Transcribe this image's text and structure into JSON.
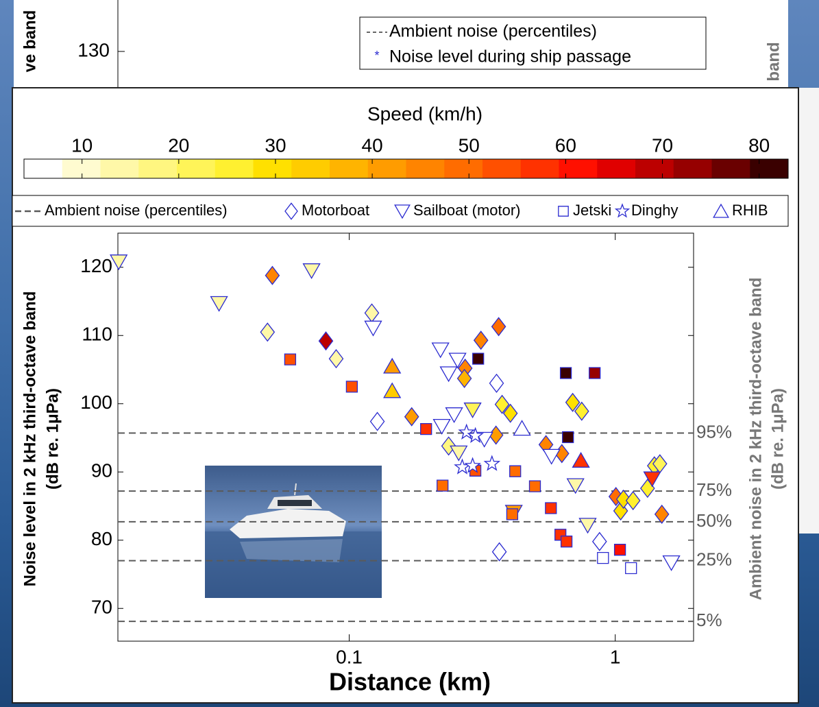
{
  "background_chart": {
    "yticks": [
      130
    ],
    "ylabel": "ve band",
    "y2label": "band",
    "legend": [
      "Ambient noise (percentiles)",
      "Noise level during ship passage"
    ]
  },
  "chart_data": {
    "type": "scatter",
    "xlabel": "Distance (km)",
    "ylabel": [
      "Noise level in 2 kHz third-octave band",
      "(dB re. 1μPa)"
    ],
    "y2label": [
      "Ambient noise in 2 kHz third-octave band",
      "(dB re. 1μPa)"
    ],
    "xscale": "log",
    "xlim": [
      0.0135,
      1.97
    ],
    "xticks": [
      0.1,
      1
    ],
    "ylim": [
      65.2,
      125
    ],
    "yticks": [
      70,
      80,
      90,
      100,
      110,
      120
    ],
    "marker_edge_color": "#2b2bd0",
    "colorbar": {
      "title": "Speed (km/h)",
      "lim": [
        4,
        83
      ],
      "ticks": [
        10,
        20,
        30,
        40,
        50,
        60,
        70,
        80
      ],
      "colors": [
        "#ffffff",
        "#fffbd0",
        "#fff8a8",
        "#fff680",
        "#fff458",
        "#fff030",
        "#ffe000",
        "#ffcc00",
        "#ffb400",
        "#ff9c00",
        "#ff8400",
        "#ff6c00",
        "#ff5000",
        "#ff3200",
        "#ff1000",
        "#e00000",
        "#bc0000",
        "#960000",
        "#6a0000",
        "#3a0000"
      ]
    },
    "reference_lines": {
      "name": "Ambient noise (percentiles)",
      "color": "#5a5a5a",
      "lines": [
        {
          "value": 95.7,
          "label": "95%"
        },
        {
          "value": 87.2,
          "label": "75%"
        },
        {
          "value": 82.7,
          "label": "50%"
        },
        {
          "value": 77.0,
          "label": "25%"
        },
        {
          "value": 68.1,
          "label": "5%"
        }
      ]
    },
    "series": [
      {
        "name": "Motorboat",
        "marker": "diamond",
        "x": [
          0.0514,
          0.0493,
          0.0817,
          0.0893,
          0.1216,
          0.1276,
          0.1717,
          0.2364,
          0.2727,
          0.271,
          0.3126,
          0.3646,
          0.3563,
          0.358,
          0.3756,
          0.4034,
          0.3667,
          0.549,
          0.63,
          0.692,
          0.748,
          1.006,
          1.048,
          1.074,
          1.167,
          1.322,
          1.403,
          1.471,
          1.497,
          0.873
        ],
        "values": [
          118.8,
          110.5,
          109.2,
          106.6,
          113.3,
          97.4,
          98.1,
          93.8,
          105.2,
          103.7,
          109.3,
          111.3,
          95.4,
          103.0,
          99.9,
          98.6,
          78.3,
          94.0,
          92.7,
          100.2,
          98.9,
          86.4,
          84.3,
          86.0,
          85.8,
          87.6,
          90.9,
          91.2,
          83.8,
          79.8
        ],
        "speeds": [
          45,
          15,
          70,
          15,
          15,
          null,
          42,
          18,
          45,
          38,
          45,
          48,
          40,
          null,
          25,
          28,
          null,
          45,
          45,
          28,
          25,
          50,
          28,
          28,
          25,
          25,
          25,
          22,
          45,
          null
        ]
      },
      {
        "name": "Sailboat (motor)",
        "marker": "triangle-down",
        "x": [
          0.0136,
          0.0324,
          0.0722,
          0.123,
          0.2203,
          0.2364,
          0.2554,
          0.2479,
          0.2228,
          0.291,
          0.322,
          0.4155,
          0.576,
          0.709,
          0.788,
          1.377,
          1.626,
          0.258
        ],
        "values": [
          120.8,
          114.7,
          119.5,
          111.1,
          107.9,
          104.4,
          106.4,
          98.4,
          96.7,
          99.1,
          94.8,
          84.1,
          92.3,
          88.0,
          82.2,
          89.0,
          76.7,
          92.8
        ],
        "speeds": [
          15,
          15,
          15,
          null,
          null,
          null,
          null,
          null,
          null,
          22,
          null,
          40,
          null,
          15,
          15,
          58,
          null,
          15
        ]
      },
      {
        "name": "Jetski",
        "marker": "square",
        "x": [
          0.06,
          0.1023,
          0.1945,
          0.2243,
          0.2979,
          0.3053,
          0.4205,
          0.41,
          0.499,
          0.573,
          0.622,
          0.652,
          0.664,
          0.837,
          0.656,
          1.042,
          0.899,
          1.146
        ],
        "values": [
          106.5,
          102.5,
          96.3,
          88.0,
          90.2,
          106.6,
          90.1,
          83.8,
          87.9,
          84.7,
          80.8,
          104.5,
          95.1,
          104.5,
          79.8,
          78.6,
          77.4,
          75.9
        ],
        "speeds": [
          52,
          52,
          56,
          48,
          52,
          82,
          50,
          48,
          48,
          56,
          58,
          82,
          80,
          74,
          58,
          60,
          null,
          null
        ]
      },
      {
        "name": "Dinghy",
        "marker": "star",
        "x": [
          0.276,
          0.266,
          0.291,
          0.344,
          0.298
        ],
        "values": [
          95.8,
          90.7,
          90.9,
          91.2,
          95.3
        ],
        "speeds": [
          null,
          null,
          null,
          null,
          null
        ]
      },
      {
        "name": "RHIB",
        "marker": "triangle-up",
        "x": [
          0.145,
          0.145,
          0.446,
          0.743
        ],
        "values": [
          105.5,
          101.9,
          96.4,
          91.7
        ],
        "speeds": [
          40,
          35,
          null,
          58
        ]
      }
    ]
  }
}
